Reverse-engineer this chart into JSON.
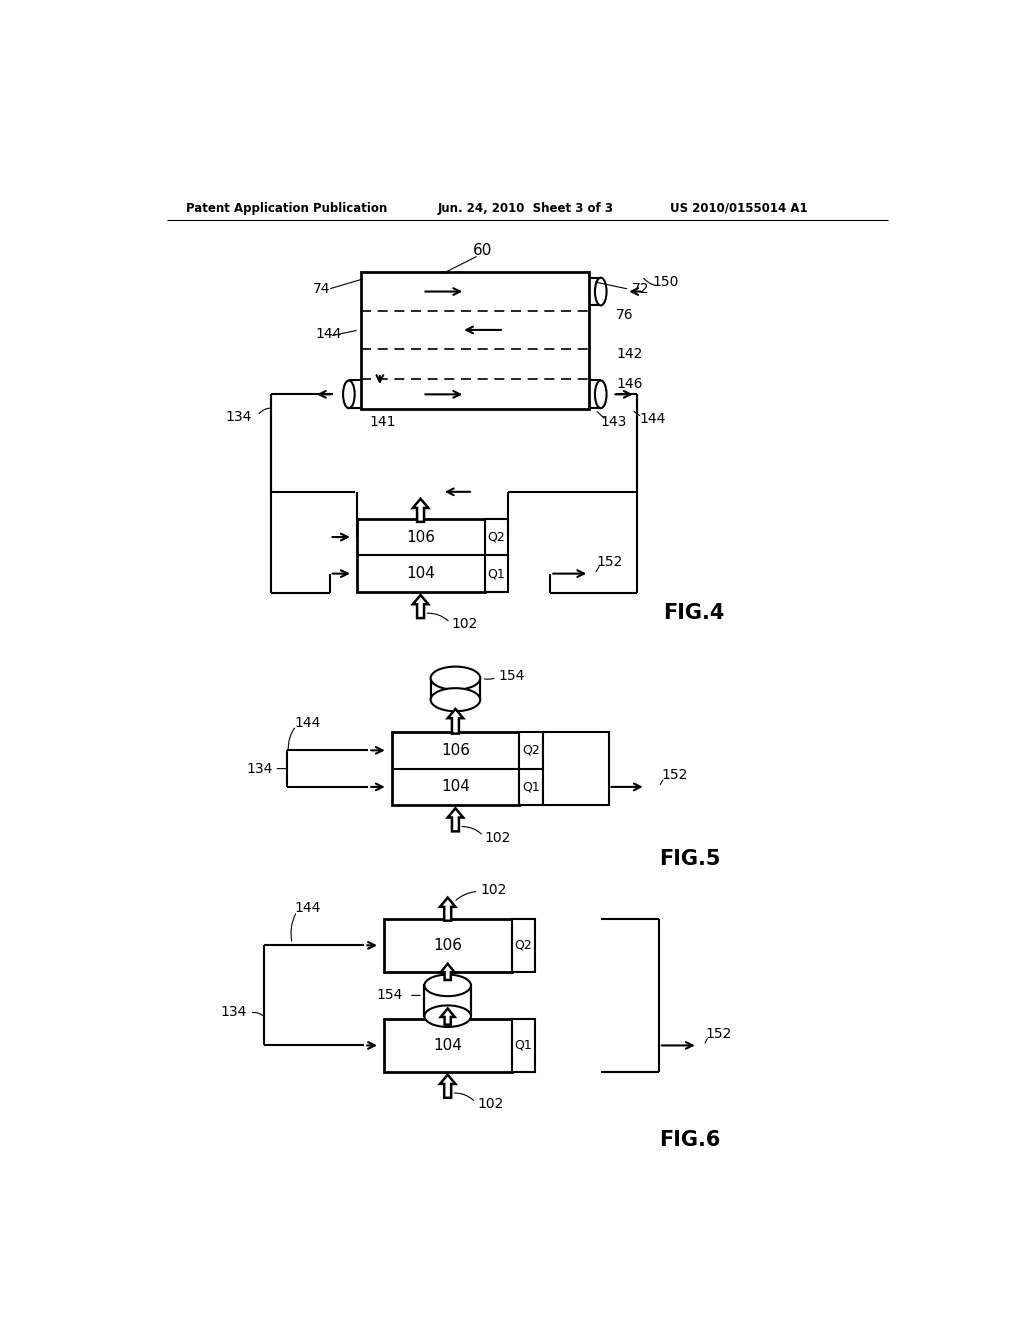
{
  "bg_color": "#ffffff",
  "header_left": "Patent Application Publication",
  "header_center": "Jun. 24, 2010  Sheet 3 of 3",
  "header_right": "US 2010/0155014 A1"
}
